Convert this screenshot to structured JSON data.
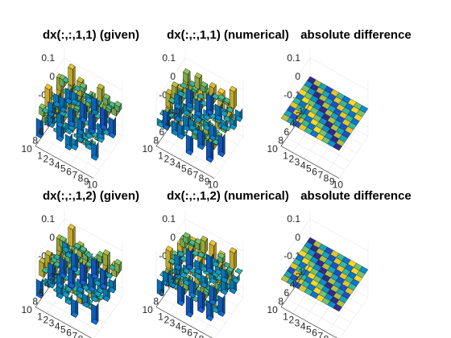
{
  "chart_data": [
    {
      "type": "bar3",
      "title": "dx(:,:,1,1) (given)",
      "zticks": [
        "0.1",
        "0",
        "-0.1"
      ],
      "zlim": [
        -0.15,
        0.15
      ],
      "xticks": [
        "1",
        "2",
        "3",
        "4",
        "5",
        "6",
        "7",
        "8",
        "9",
        "10"
      ],
      "yticks": [
        "1",
        "2",
        "4",
        "6",
        "8",
        "10"
      ],
      "grid": true,
      "colormap": "parula"
    },
    {
      "type": "bar3",
      "title": "dx(:,:,1,1) (numerical)",
      "zticks": [
        "0.1",
        "0",
        "-0.1"
      ],
      "zlim": [
        -0.15,
        0.15
      ],
      "xticks": [
        "1",
        "2",
        "3",
        "4",
        "5",
        "6",
        "7",
        "8",
        "9",
        "10"
      ],
      "yticks": [
        "1",
        "2",
        "4",
        "6",
        "8",
        "10"
      ],
      "grid": true,
      "colormap": "parula"
    },
    {
      "type": "surface",
      "title": "absolute difference",
      "zticks": [
        "0.1",
        "0",
        "-0.1"
      ],
      "zlim": [
        -0.15,
        0.15
      ],
      "xticks": [
        "1",
        "2",
        "3",
        "4",
        "5",
        "6",
        "7",
        "8",
        "9",
        "10"
      ],
      "yticks": [
        "1",
        "2",
        "4",
        "6",
        "8",
        "10"
      ],
      "grid": true,
      "colormap": "parula",
      "values_approx": 0
    },
    {
      "type": "bar3",
      "title": "dx(:,:,1,2) (given)",
      "zticks": [
        "0.1",
        "0",
        "-0.1"
      ],
      "zlim": [
        -0.15,
        0.15
      ],
      "xticks": [
        "1",
        "2",
        "3",
        "4",
        "5",
        "6",
        "7",
        "8",
        "9",
        "10"
      ],
      "yticks": [
        "1",
        "2",
        "4",
        "6",
        "8",
        "10"
      ],
      "grid": true,
      "colormap": "parula"
    },
    {
      "type": "bar3",
      "title": "dx(:,:,1,2) (numerical)",
      "zticks": [
        "0.1",
        "0",
        "-0.1"
      ],
      "zlim": [
        -0.15,
        0.15
      ],
      "xticks": [
        "1",
        "2",
        "3",
        "4",
        "5",
        "6",
        "7",
        "8",
        "9",
        "10"
      ],
      "yticks": [
        "1",
        "2",
        "4",
        "6",
        "8",
        "10"
      ],
      "grid": true,
      "colormap": "parula"
    },
    {
      "type": "surface",
      "title": "absolute difference",
      "zticks": [
        "0.1",
        "0",
        "-0.1"
      ],
      "zlim": [
        -0.15,
        0.15
      ],
      "xticks": [
        "1",
        "2",
        "3",
        "4",
        "5",
        "6",
        "7",
        "8",
        "9",
        "10"
      ],
      "yticks": [
        "1",
        "2",
        "4",
        "6",
        "8",
        "10"
      ],
      "grid": true,
      "colormap": "parula",
      "values_approx": 0
    }
  ]
}
